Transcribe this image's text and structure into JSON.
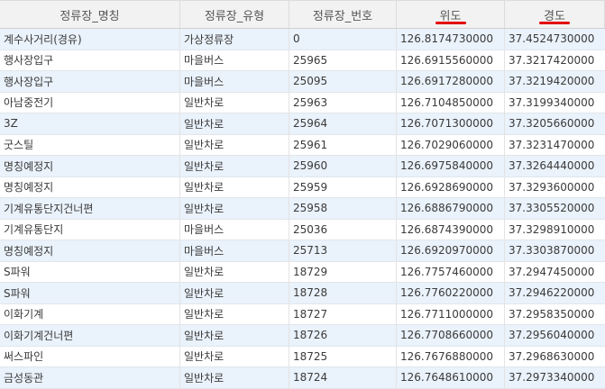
{
  "columns": [
    "정류장_명칭",
    "정류장_유형",
    "정류장_번호",
    "위도",
    "경도"
  ],
  "highlight_color": "#e30000",
  "rows": [
    {
      "name": "계수사거리(경유)",
      "type": "가상정류장",
      "num": "0",
      "lat": "126.8174730000",
      "lon": "37.4524730000"
    },
    {
      "name": "행사장입구",
      "type": "마을버스",
      "num": "25965",
      "lat": "126.6915560000",
      "lon": "37.3217420000"
    },
    {
      "name": "행사장입구",
      "type": "마을버스",
      "num": "25095",
      "lat": "126.6917280000",
      "lon": "37.3219420000"
    },
    {
      "name": "아남중전기",
      "type": "일반차로",
      "num": "25963",
      "lat": "126.7104850000",
      "lon": "37.3199340000"
    },
    {
      "name": "3Z",
      "type": "일반차로",
      "num": "25964",
      "lat": "126.7071300000",
      "lon": "37.3205660000"
    },
    {
      "name": "굿스틸",
      "type": "일반차로",
      "num": "25961",
      "lat": "126.7029060000",
      "lon": "37.3231470000"
    },
    {
      "name": "명칭예정지",
      "type": "일반차로",
      "num": "25960",
      "lat": "126.6975840000",
      "lon": "37.3264440000"
    },
    {
      "name": "명칭예정지",
      "type": "일반차로",
      "num": "25959",
      "lat": "126.6928690000",
      "lon": "37.3293600000"
    },
    {
      "name": "기계유통단지건너편",
      "type": "일반차로",
      "num": "25958",
      "lat": "126.6886790000",
      "lon": "37.3305520000"
    },
    {
      "name": "기계유통단지",
      "type": "마을버스",
      "num": "25036",
      "lat": "126.6874390000",
      "lon": "37.3298910000"
    },
    {
      "name": "명칭예정지",
      "type": "마을버스",
      "num": "25713",
      "lat": "126.6920970000",
      "lon": "37.3303870000"
    },
    {
      "name": "S파워",
      "type": "일반차로",
      "num": "18729",
      "lat": "126.7757460000",
      "lon": "37.2947450000"
    },
    {
      "name": "S파워",
      "type": "일반차로",
      "num": "18728",
      "lat": "126.7760220000",
      "lon": "37.2946220000"
    },
    {
      "name": "이화기계",
      "type": "일반차로",
      "num": "18727",
      "lat": "126.7711000000",
      "lon": "37.2958350000"
    },
    {
      "name": "이화기계건너편",
      "type": "일반차로",
      "num": "18726",
      "lat": "126.7708660000",
      "lon": "37.2956040000"
    },
    {
      "name": "써스파인",
      "type": "일반차로",
      "num": "18725",
      "lat": "126.7676880000",
      "lon": "37.2968630000"
    },
    {
      "name": "금성동관",
      "type": "일반차로",
      "num": "18724",
      "lat": "126.7648610000",
      "lon": "37.2973340000"
    }
  ]
}
